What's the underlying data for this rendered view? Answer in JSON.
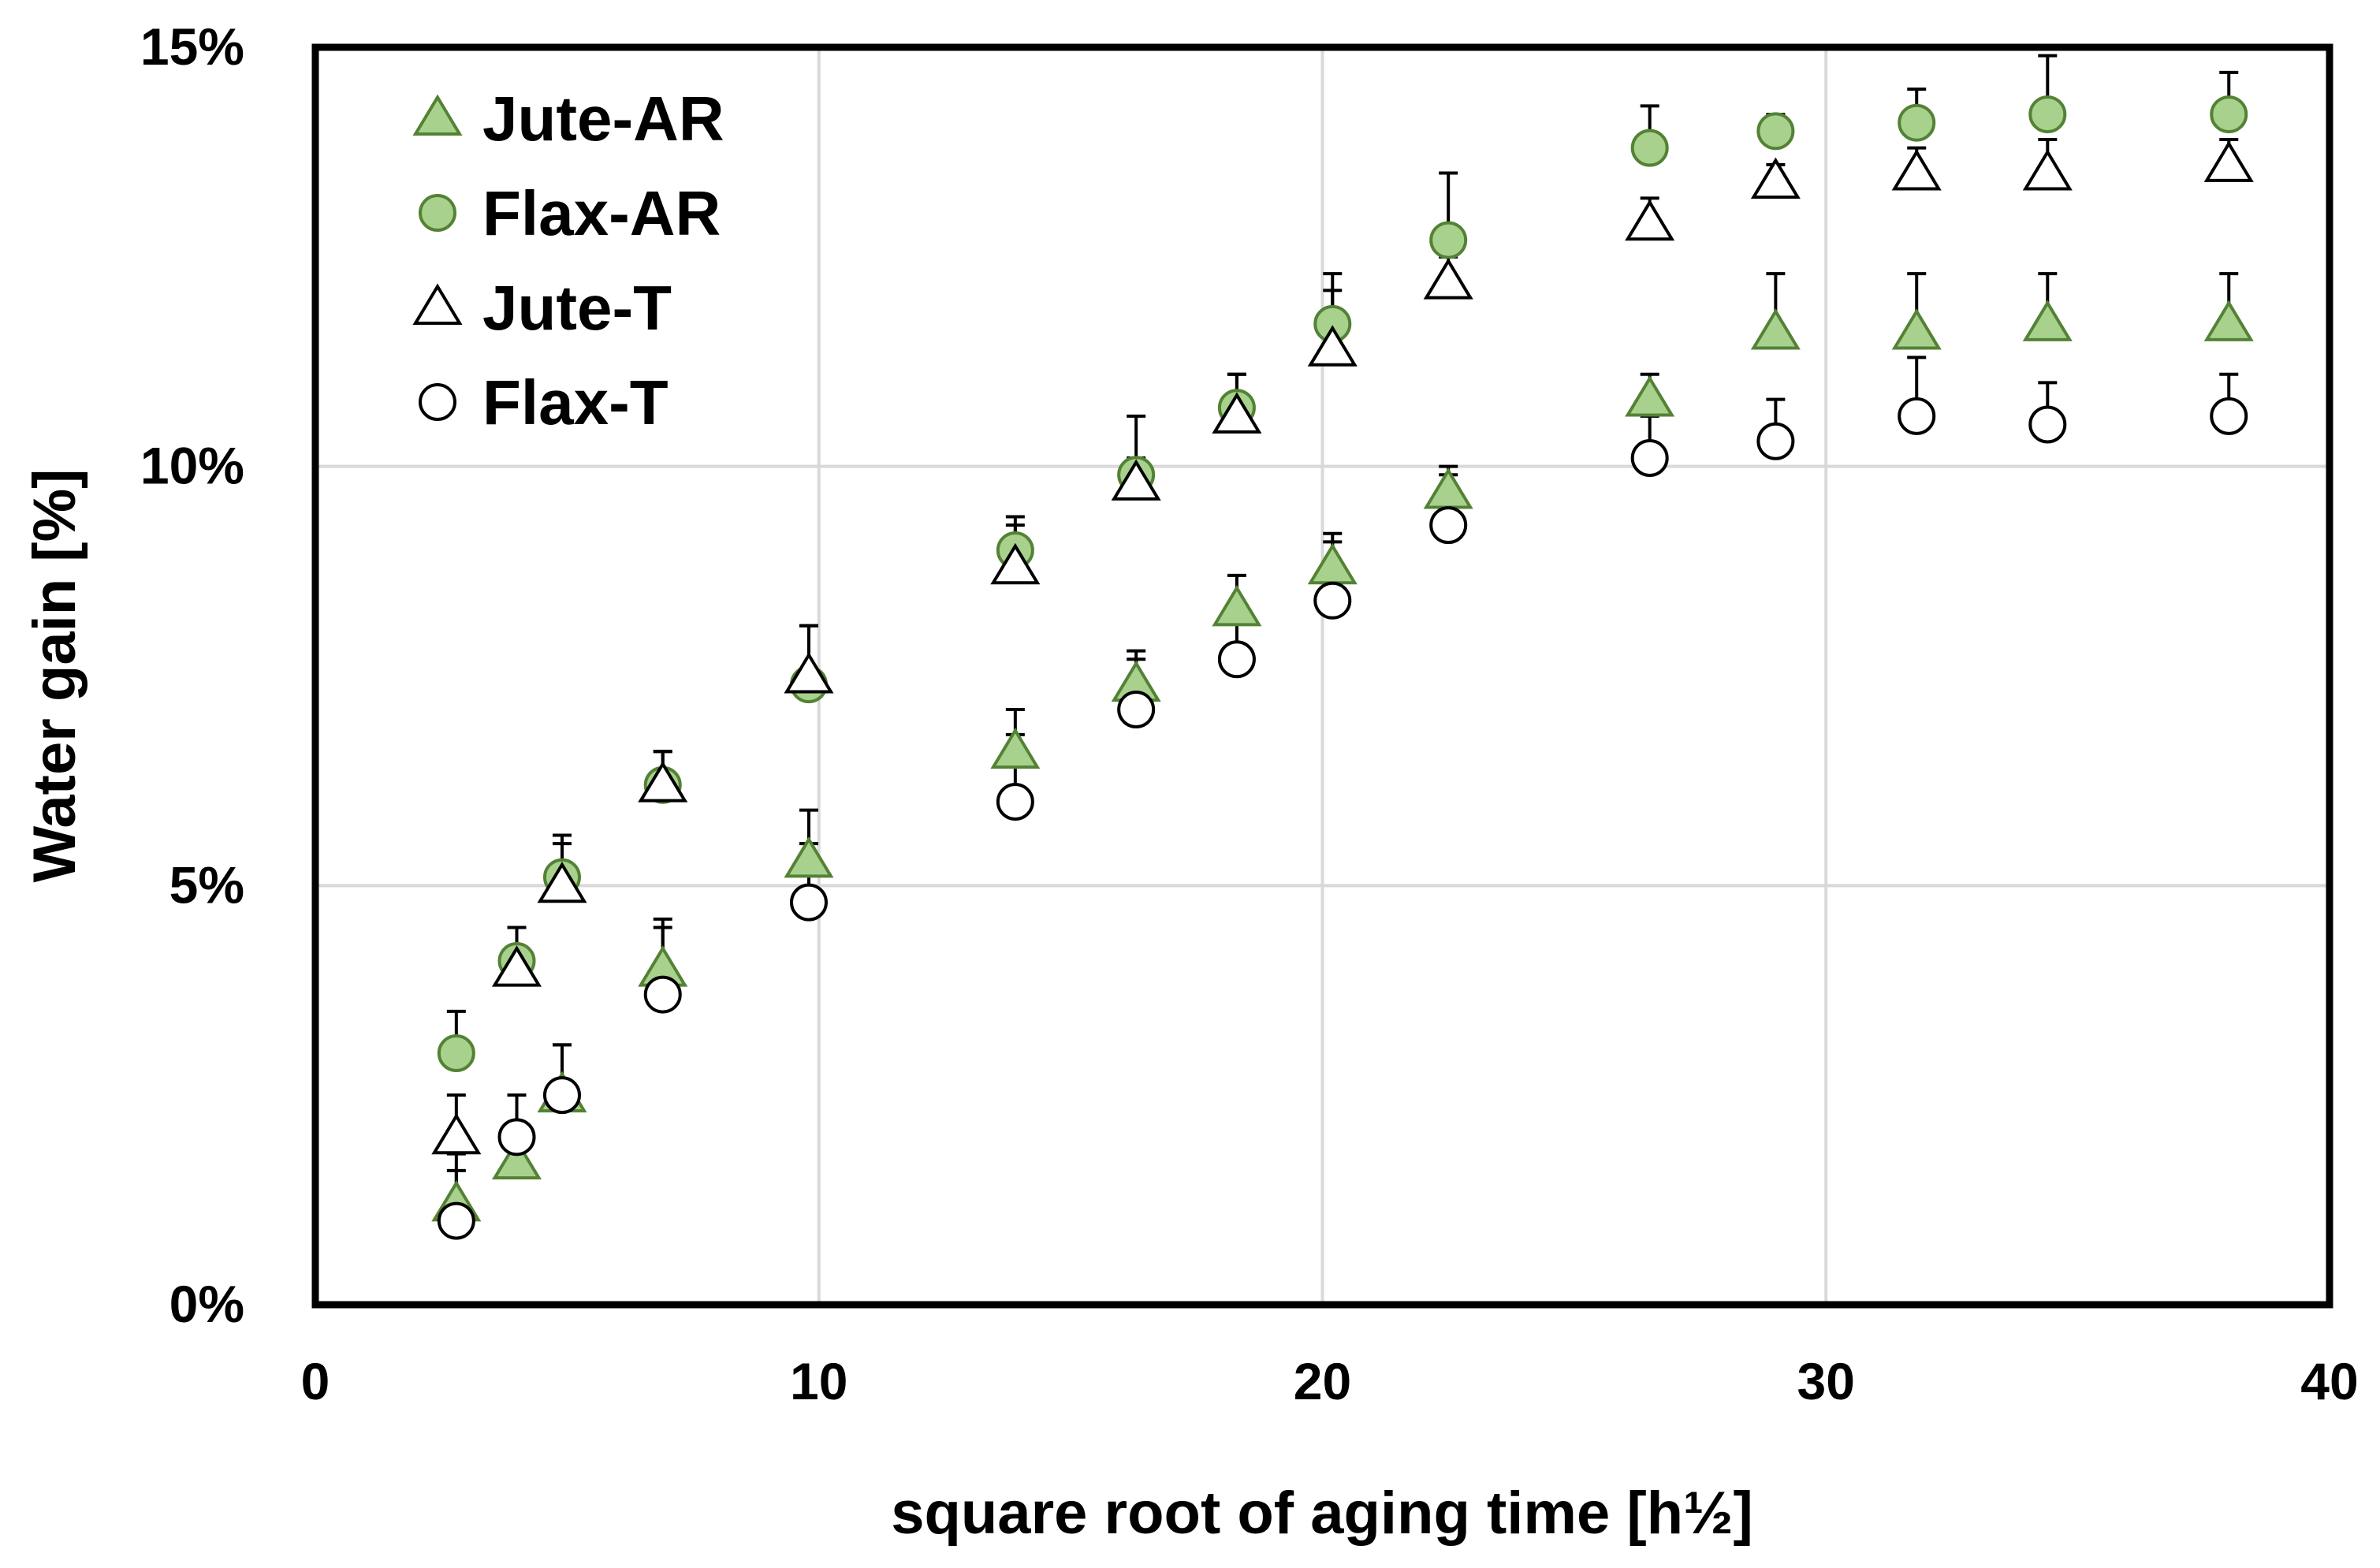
{
  "chart_data": {
    "type": "scatter",
    "xlabel": "square root of aging time [h½]",
    "ylabel": "Water gain [%]",
    "xlim": [
      0,
      40
    ],
    "ylim": [
      0,
      15
    ],
    "xticks": [
      0,
      10,
      20,
      30,
      40
    ],
    "xtick_labels": [
      "0",
      "10",
      "20",
      "30",
      "40"
    ],
    "yticks": [
      0,
      5,
      10,
      15
    ],
    "ytick_labels": [
      "0%",
      "5%",
      "10%",
      "15%"
    ],
    "grid": true,
    "legend_position": "top-left",
    "error_bars": "upper only",
    "series": [
      {
        "name": "Jute-AR",
        "marker": "triangle",
        "fill": "#a9d18e",
        "stroke": "#548235",
        "x": [
          2.8,
          4.0,
          4.9,
          6.9,
          9.8,
          13.9,
          16.3,
          18.3,
          20.2,
          22.5,
          26.5,
          29.0,
          31.8,
          34.4,
          38.0
        ],
        "y": [
          1.2,
          1.7,
          2.5,
          4.0,
          5.3,
          6.6,
          7.4,
          8.3,
          8.8,
          9.7,
          10.8,
          11.6,
          11.6,
          11.7,
          11.7
        ],
        "err": [
          0.6,
          0.3,
          0.6,
          0.5,
          0.6,
          0.5,
          0.3,
          0.4,
          0.4,
          0.3,
          0.3,
          0.7,
          0.7,
          0.6,
          0.6
        ]
      },
      {
        "name": "Flax-AR",
        "marker": "circle",
        "fill": "#a9d18e",
        "stroke": "#548235",
        "x": [
          2.8,
          4.0,
          4.9,
          6.9,
          9.8,
          13.9,
          16.3,
          18.3,
          20.2,
          22.5,
          26.5,
          29.0,
          31.8,
          34.4,
          38.0
        ],
        "y": [
          3.0,
          4.1,
          5.1,
          6.2,
          7.4,
          9.0,
          9.9,
          10.7,
          11.7,
          12.7,
          13.8,
          14.0,
          14.1,
          14.2,
          14.2
        ],
        "err": [
          0.5,
          0.4,
          0.4,
          0.4,
          0.7,
          0.4,
          0.7,
          0.4,
          0.6,
          0.8,
          0.5,
          0.2,
          0.4,
          0.7,
          0.5
        ]
      },
      {
        "name": "Jute-T",
        "marker": "triangle",
        "fill": "#ffffff",
        "stroke": "#000000",
        "x": [
          2.8,
          4.0,
          4.9,
          6.9,
          9.8,
          13.9,
          16.3,
          18.3,
          20.2,
          22.5,
          26.5,
          29.0,
          31.8,
          34.4,
          38.0
        ],
        "y": [
          2.0,
          4.0,
          5.0,
          6.2,
          7.5,
          8.8,
          9.8,
          10.6,
          11.4,
          12.2,
          12.9,
          13.4,
          13.5,
          13.5,
          13.6
        ],
        "err": [
          0.5,
          0.5,
          0.6,
          0.4,
          0.6,
          0.5,
          0.3,
          0.5,
          0.7,
          0.3,
          0.3,
          0.2,
          0.3,
          0.4,
          0.3
        ]
      },
      {
        "name": "Flax-T",
        "marker": "circle",
        "fill": "#ffffff",
        "stroke": "#000000",
        "x": [
          2.8,
          4.0,
          4.9,
          6.9,
          9.8,
          13.9,
          16.3,
          18.3,
          20.2,
          22.5,
          26.5,
          29.0,
          31.8,
          34.4,
          38.0
        ],
        "y": [
          1.0,
          2.0,
          2.5,
          3.7,
          4.8,
          6.0,
          7.1,
          7.7,
          8.4,
          9.3,
          10.1,
          10.3,
          10.6,
          10.5,
          10.6
        ],
        "err": [
          0.6,
          0.5,
          0.6,
          0.9,
          0.7,
          0.8,
          0.7,
          0.5,
          0.7,
          0.6,
          0.5,
          0.5,
          0.7,
          0.5,
          0.5
        ]
      }
    ]
  }
}
